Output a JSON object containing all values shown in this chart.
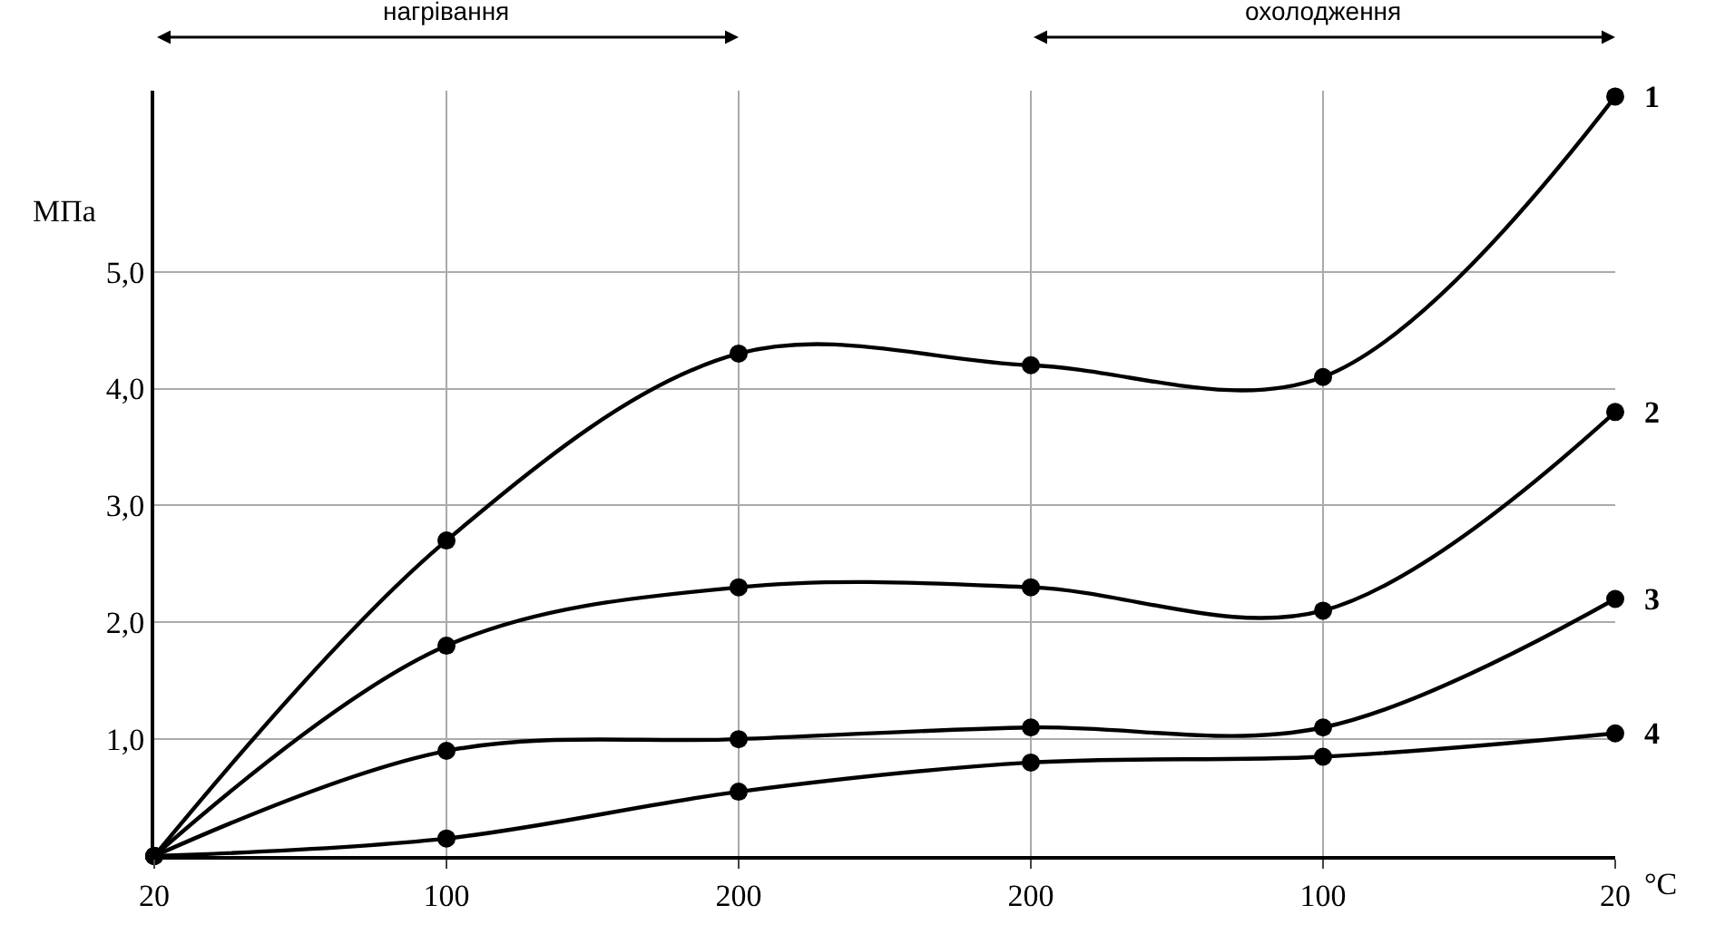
{
  "chart_data": {
    "type": "line",
    "xlabel": "°C",
    "ylabel": "МПа",
    "categories": [
      "20",
      "100",
      "200",
      "200",
      "100",
      "20"
    ],
    "series": [
      {
        "name": "1",
        "color": "#000000",
        "values": [
          0,
          2.7,
          4.3,
          4.2,
          4.1,
          6.5
        ]
      },
      {
        "name": "2",
        "color": "#000000",
        "values": [
          0,
          1.8,
          2.3,
          2.3,
          2.1,
          3.8
        ]
      },
      {
        "name": "3",
        "color": "#000000",
        "values": [
          0,
          0.9,
          1.0,
          1.1,
          1.1,
          2.2
        ]
      },
      {
        "name": "4",
        "color": "#000000",
        "values": [
          0,
          0.15,
          0.55,
          0.8,
          0.85,
          1.05
        ]
      }
    ],
    "ylim": [
      0,
      6.55
    ],
    "yticks": [
      {
        "value": 1,
        "label": "1,0"
      },
      {
        "value": 2,
        "label": "2,0"
      },
      {
        "value": 3,
        "label": "3,0"
      },
      {
        "value": 4,
        "label": "4,0"
      },
      {
        "value": 5,
        "label": "5,0"
      }
    ],
    "annotations": [
      "нагрівання",
      "охолодження"
    ],
    "grid": true,
    "legend": false,
    "marker": "circle",
    "line_style": "solid"
  }
}
